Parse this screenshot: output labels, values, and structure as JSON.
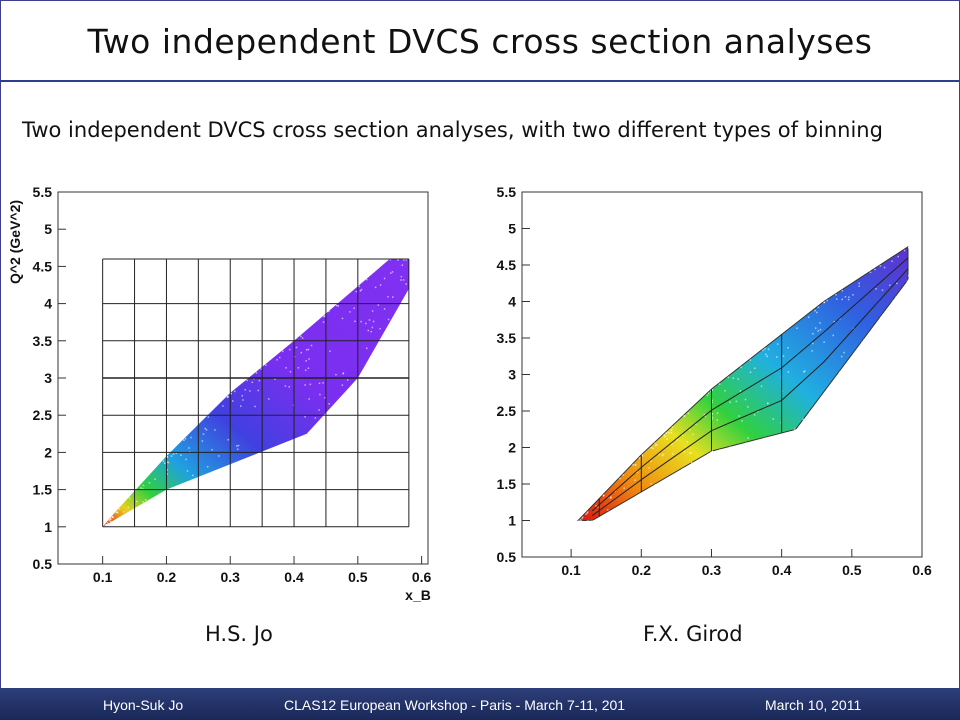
{
  "slide": {
    "title": "Two independent DVCS cross section analyses",
    "subtitle": "Two independent DVCS cross section analyses, with two different types of binning"
  },
  "footer": {
    "author": "Hyon-Suk Jo",
    "event": "CLAS12 European Workshop - Paris - March 7-11, 201",
    "date": "March 10, 2011"
  },
  "colors": {
    "footer_bar": "#1f2f66",
    "title_rule": "#2f3f8f",
    "left_fill": "#7a2ff0",
    "right_gradient": [
      "#e01010",
      "#f08a10",
      "#e8e020",
      "#30d040",
      "#20b0e0",
      "#3060e0",
      "#6030d0"
    ]
  },
  "chart_data": [
    {
      "type": "heatmap",
      "caption": "H.S. Jo",
      "xlabel": "x_B",
      "ylabel": "Q^2 (GeV^2)",
      "xlim": [
        0.03,
        0.61
      ],
      "ylim": [
        0.5,
        5.5
      ],
      "x_ticks": [
        "0.1",
        "0.2",
        "0.3",
        "0.4",
        "0.5",
        "0.6"
      ],
      "y_ticks": [
        "0.5",
        "1",
        "1.5",
        "2",
        "2.5",
        "3",
        "3.5",
        "4",
        "4.5",
        "5",
        "5.5"
      ],
      "binning": "rectangular grid",
      "grid_x_edges": [
        0.1,
        0.15,
        0.2,
        0.25,
        0.3,
        0.35,
        0.4,
        0.45,
        0.5,
        0.58
      ],
      "grid_y_edges": [
        1.0,
        1.5,
        2.0,
        2.5,
        3.0,
        3.5,
        4.0,
        4.6
      ],
      "acceptance_outline": [
        [
          0.1,
          1.0
        ],
        [
          0.2,
          1.5
        ],
        [
          0.42,
          2.25
        ],
        [
          0.5,
          3.0
        ],
        [
          0.58,
          4.2
        ],
        [
          0.58,
          4.6
        ],
        [
          0.55,
          4.6
        ],
        [
          0.4,
          3.5
        ],
        [
          0.3,
          2.8
        ],
        [
          0.2,
          1.95
        ],
        [
          0.12,
          1.2
        ],
        [
          0.1,
          1.0
        ]
      ]
    },
    {
      "type": "heatmap",
      "caption": "F.X. Girod",
      "xlabel": "",
      "ylabel": "",
      "xlim": [
        0.03,
        0.6
      ],
      "ylim": [
        0.5,
        5.5
      ],
      "x_ticks": [
        "0.1",
        "0.2",
        "0.3",
        "0.4",
        "0.5",
        "0.6"
      ],
      "y_ticks": [
        "0.5",
        "1",
        "1.5",
        "2",
        "2.5",
        "3",
        "3.5",
        "4",
        "4.5",
        "5",
        "5.5"
      ],
      "binning": "acceptance-shaped bins",
      "bin_x_edges": [
        0.14,
        0.2,
        0.3,
        0.4
      ],
      "acceptance_outline": [
        [
          0.11,
          1.0
        ],
        [
          0.13,
          1.0
        ],
        [
          0.3,
          1.95
        ],
        [
          0.42,
          2.25
        ],
        [
          0.58,
          4.3
        ],
        [
          0.58,
          4.75
        ],
        [
          0.46,
          4.0
        ],
        [
          0.3,
          2.8
        ],
        [
          0.2,
          1.9
        ],
        [
          0.11,
          1.0
        ]
      ]
    }
  ]
}
